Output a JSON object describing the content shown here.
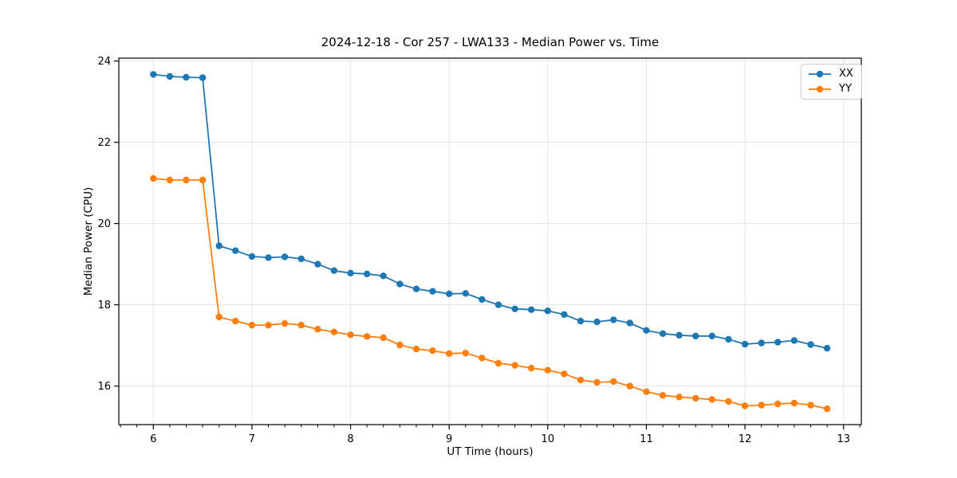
{
  "chart_data": {
    "type": "line",
    "title": "2024-12-18 - Cor 257 - LWA133 - Median Power vs. Time",
    "xlabel": "UT Time (hours)",
    "ylabel": "Median Power (CPU)",
    "xlim": [
      5.65,
      13.18
    ],
    "ylim": [
      15.05,
      24.07
    ],
    "xticks": [
      6,
      7,
      8,
      9,
      10,
      11,
      12,
      13
    ],
    "yticks": [
      16,
      18,
      20,
      22,
      24
    ],
    "minor_xtick_interval_hours": 0.1667,
    "grid": true,
    "legend_position": "upper right",
    "background": "#ffffff",
    "grid_color": "#e6e6e6",
    "x": [
      6.0,
      6.167,
      6.333,
      6.5,
      6.667,
      6.833,
      7.0,
      7.167,
      7.333,
      7.5,
      7.667,
      7.833,
      8.0,
      8.167,
      8.333,
      8.5,
      8.667,
      8.833,
      9.0,
      9.167,
      9.333,
      9.5,
      9.667,
      9.833,
      10.0,
      10.167,
      10.333,
      10.5,
      10.667,
      10.833,
      11.0,
      11.167,
      11.333,
      11.5,
      11.667,
      11.833,
      12.0,
      12.167,
      12.333,
      12.5,
      12.667,
      12.833
    ],
    "series": [
      {
        "name": "XX",
        "color": "#1f77b4",
        "values": [
          23.67,
          23.62,
          23.6,
          23.59,
          19.45,
          19.33,
          19.19,
          19.16,
          19.18,
          19.13,
          19.0,
          18.84,
          18.78,
          18.76,
          18.71,
          18.51,
          18.39,
          18.33,
          18.27,
          18.28,
          18.13,
          18.0,
          17.9,
          17.88,
          17.85,
          17.76,
          17.6,
          17.58,
          17.63,
          17.55,
          17.37,
          17.29,
          17.25,
          17.23,
          17.23,
          17.15,
          17.03,
          17.06,
          17.08,
          17.12,
          17.02,
          16.93
        ]
      },
      {
        "name": "YY",
        "color": "#ff7f0e",
        "values": [
          21.11,
          21.07,
          21.07,
          21.07,
          17.7,
          17.6,
          17.5,
          17.5,
          17.54,
          17.5,
          17.4,
          17.33,
          17.26,
          17.22,
          17.19,
          17.01,
          16.91,
          16.87,
          16.8,
          16.81,
          16.69,
          16.56,
          16.51,
          16.44,
          16.39,
          16.3,
          16.15,
          16.09,
          16.11,
          16.0,
          15.86,
          15.77,
          15.73,
          15.7,
          15.67,
          15.62,
          15.51,
          15.53,
          15.56,
          15.58,
          15.53,
          15.44
        ]
      }
    ]
  }
}
